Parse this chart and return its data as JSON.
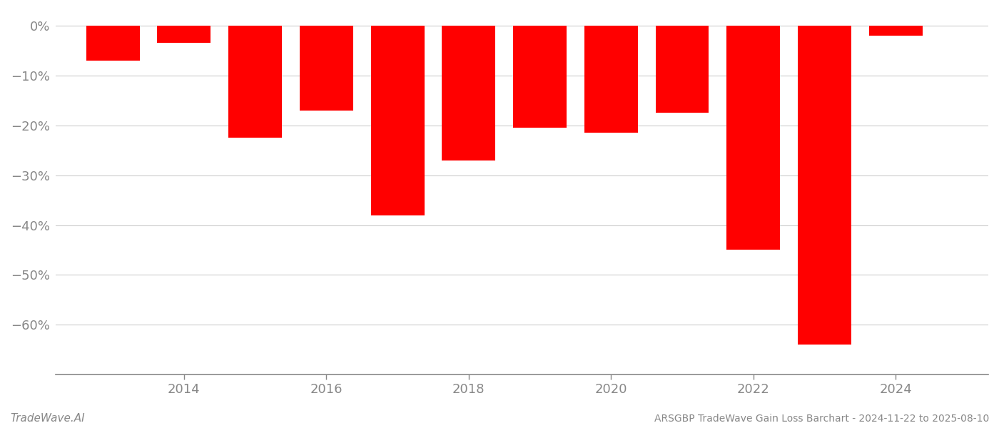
{
  "years": [
    2013,
    2014,
    2015,
    2016,
    2017,
    2018,
    2019,
    2020,
    2021,
    2022,
    2023,
    2024
  ],
  "values": [
    -7.0,
    -3.5,
    -22.5,
    -17.0,
    -38.0,
    -27.0,
    -20.5,
    -21.5,
    -17.5,
    -45.0,
    -64.0,
    -2.0
  ],
  "bar_color": "#ff0000",
  "background_color": "#ffffff",
  "grid_color": "#cccccc",
  "axis_color": "#888888",
  "tick_color": "#888888",
  "ylim": [
    -70,
    3
  ],
  "yticks": [
    0,
    -10,
    -20,
    -30,
    -40,
    -50,
    -60
  ],
  "xtick_labels": [
    "2014",
    "2016",
    "2018",
    "2020",
    "2022",
    "2024"
  ],
  "xtick_positions": [
    2014,
    2016,
    2018,
    2020,
    2022,
    2024
  ],
  "xlim": [
    2012.2,
    2025.3
  ],
  "footer_left": "TradeWave.AI",
  "footer_right": "ARSGBP TradeWave Gain Loss Barchart - 2024-11-22 to 2025-08-10",
  "bar_width": 0.75
}
